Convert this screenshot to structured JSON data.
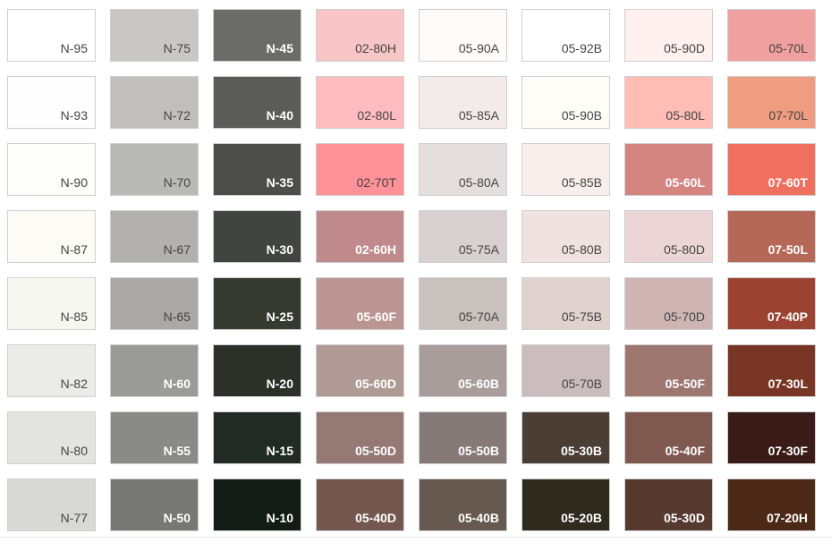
{
  "rows": [
    [
      {
        "label": "N-95",
        "color": "#ffffff"
      },
      {
        "label": "N-75",
        "color": "#c8c7c5"
      },
      {
        "label": "N-45",
        "color": "#6b6c69"
      },
      {
        "label": "02-80H",
        "color": "#f9c6c7"
      },
      {
        "label": "05-90A",
        "color": "#fffbf8"
      },
      {
        "label": "05-92B",
        "color": "#ffffff"
      },
      {
        "label": "05-90D",
        "color": "#fff1ee"
      },
      {
        "label": "05-70L",
        "color": "#f0a09e"
      }
    ],
    [
      {
        "label": "N-93",
        "color": "#fefefe"
      },
      {
        "label": "N-72",
        "color": "#c0bfbc"
      },
      {
        "label": "N-40",
        "color": "#5b5c58"
      },
      {
        "label": "02-80L",
        "color": "#ffbcc0"
      },
      {
        "label": "05-85A",
        "color": "#f3ebea"
      },
      {
        "label": "05-90B",
        "color": "#fffdf8"
      },
      {
        "label": "05-80L",
        "color": "#ffbdb6"
      },
      {
        "label": "07-70L",
        "color": "#f09c80"
      }
    ],
    [
      {
        "label": "N-90",
        "color": "#fdfdfa"
      },
      {
        "label": "N-70",
        "color": "#b9b9b6"
      },
      {
        "label": "N-35",
        "color": "#4d4e4a"
      },
      {
        "label": "02-70T",
        "color": "#ff9199"
      },
      {
        "label": "05-80A",
        "color": "#e4dfdd"
      },
      {
        "label": "05-85B",
        "color": "#f8efed"
      },
      {
        "label": "05-60L",
        "color": "#d58580"
      },
      {
        "label": "07-60T",
        "color": "#f07060"
      }
    ],
    [
      {
        "label": "N-87",
        "color": "#fcfbf6"
      },
      {
        "label": "N-67",
        "color": "#b2b1af"
      },
      {
        "label": "N-30",
        "color": "#41443f"
      },
      {
        "label": "02-60H",
        "color": "#c08a8d"
      },
      {
        "label": "05-75A",
        "color": "#d9d1d0"
      },
      {
        "label": "05-80B",
        "color": "#efe2e1"
      },
      {
        "label": "05-80D",
        "color": "#ebd6d5"
      },
      {
        "label": "07-50L",
        "color": "#b56858"
      }
    ],
    [
      {
        "label": "N-85",
        "color": "#f7f7f2"
      },
      {
        "label": "N-65",
        "color": "#aaa9a7"
      },
      {
        "label": "N-25",
        "color": "#353930"
      },
      {
        "label": "05-60F",
        "color": "#bb9592"
      },
      {
        "label": "05-70A",
        "color": "#c8c1be"
      },
      {
        "label": "05-75B",
        "color": "#e0d3cf"
      },
      {
        "label": "05-70D",
        "color": "#ceb5b4"
      },
      {
        "label": "07-40P",
        "color": "#9c4230"
      }
    ],
    [
      {
        "label": "N-82",
        "color": "#ebebe8"
      },
      {
        "label": "N-60",
        "color": "#9a9a98"
      },
      {
        "label": "N-20",
        "color": "#2b3129"
      },
      {
        "label": "05-60D",
        "color": "#b09a95"
      },
      {
        "label": "05-60B",
        "color": "#a89d9a"
      },
      {
        "label": "05-70B",
        "color": "#cbbdbd"
      },
      {
        "label": "05-50F",
        "color": "#9d7670"
      },
      {
        "label": "07-30L",
        "color": "#783524"
      }
    ],
    [
      {
        "label": "N-80",
        "color": "#e3e3e0"
      },
      {
        "label": "N-55",
        "color": "#8a8a88"
      },
      {
        "label": "N-15",
        "color": "#212b23"
      },
      {
        "label": "05-50D",
        "color": "#947974"
      },
      {
        "label": "05-50B",
        "color": "#867a78"
      },
      {
        "label": "05-30B",
        "color": "#4a3e35"
      },
      {
        "label": "05-40F",
        "color": "#7f5850"
      },
      {
        "label": "07-30F",
        "color": "#3a1b17"
      }
    ],
    [
      {
        "label": "N-77",
        "color": "#d8d8d4"
      },
      {
        "label": "N-50",
        "color": "#777874"
      },
      {
        "label": "N-10",
        "color": "#131c14"
      },
      {
        "label": "05-40D",
        "color": "#745850"
      },
      {
        "label": "05-40B",
        "color": "#665a50"
      },
      {
        "label": "05-20B",
        "color": "#2f2a1e"
      },
      {
        "label": "05-30D",
        "color": "#563a30"
      },
      {
        "label": "07-20H",
        "color": "#4c2816"
      }
    ]
  ]
}
